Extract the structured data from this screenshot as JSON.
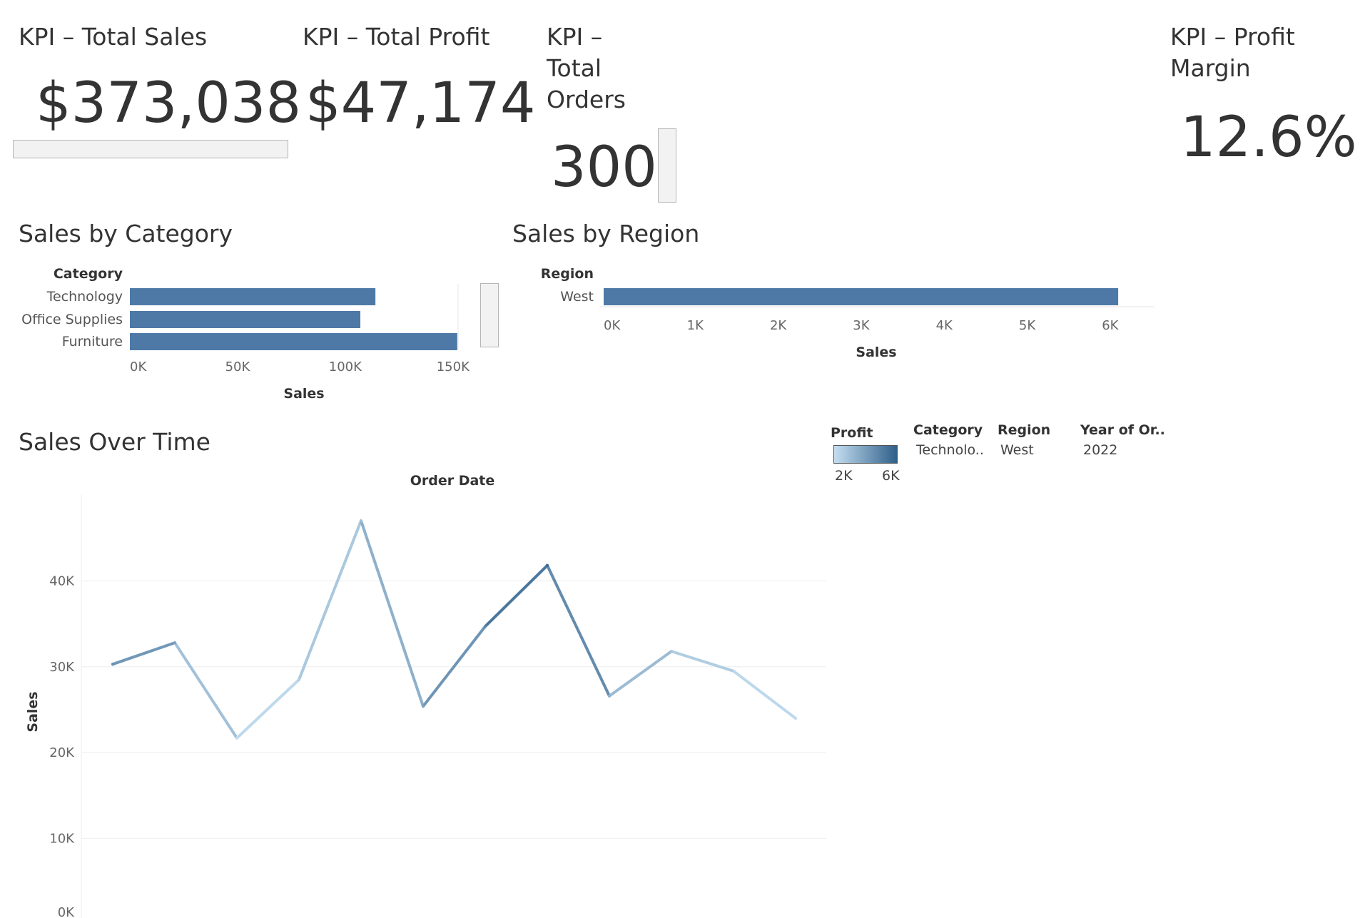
{
  "kpis": {
    "total_sales": {
      "title": "KPI – Total Sales",
      "value": "$373,038"
    },
    "total_profit": {
      "title": "KPI – Total Profit",
      "value": "$47,174"
    },
    "total_orders": {
      "title": "KPI –\nTotal\nOrders",
      "value": "300"
    },
    "profit_margin": {
      "title": "KPI – Profit\nMargin",
      "value": "12.6%"
    }
  },
  "colors": {
    "bar": "#4e79a7",
    "line_low": "#c4def0",
    "line_high": "#2f5f8a",
    "text": "#333333",
    "tick": "#666666"
  },
  "legend": {
    "profit": {
      "title": "Profit",
      "min_label": "2K",
      "max_label": "6K"
    },
    "filters": [
      {
        "label": "Category",
        "value": "Technolo.."
      },
      {
        "label": "Region",
        "value": "West"
      },
      {
        "label": "Year of Or..",
        "value": "2022"
      }
    ]
  },
  "chart_data": [
    {
      "type": "bar",
      "orientation": "horizontal",
      "title": "Sales by Category",
      "row_header": "Category",
      "categories": [
        "Technology",
        "Office Supplies",
        "Furniture"
      ],
      "values": [
        114000,
        107000,
        152000
      ],
      "xlabel": "Sales",
      "xlim": [
        0,
        160000
      ],
      "xticks": [
        0,
        50000,
        100000,
        150000
      ],
      "xtick_labels": [
        "0K",
        "50K",
        "100K",
        "150K"
      ]
    },
    {
      "type": "bar",
      "orientation": "horizontal",
      "title": "Sales by Region",
      "row_header": "Region",
      "categories": [
        "West"
      ],
      "values": [
        6200
      ],
      "xlabel": "Sales",
      "xlim": [
        0,
        6500
      ],
      "xticks": [
        0,
        1000,
        2000,
        3000,
        4000,
        5000,
        6000
      ],
      "xtick_labels": [
        "0K",
        "1K",
        "2K",
        "3K",
        "4K",
        "5K",
        "6K"
      ]
    },
    {
      "type": "line",
      "title": "Sales Over Time",
      "xlabel": "Order Date",
      "ylabel": "Sales",
      "x": [
        1,
        2,
        3,
        4,
        5,
        6,
        7,
        8,
        9,
        10,
        11,
        12
      ],
      "values": [
        30300,
        32800,
        21700,
        28500,
        47000,
        25400,
        34700,
        41800,
        26600,
        31800,
        29500,
        24000
      ],
      "profit": [
        4500,
        3900,
        1900,
        2400,
        3000,
        3900,
        4700,
        5800,
        3400,
        2800,
        2300,
        2100
      ],
      "ylim": [
        0,
        50000
      ],
      "yticks": [
        0,
        10000,
        20000,
        30000,
        40000
      ],
      "ytick_labels": [
        "0K",
        "10K",
        "20K",
        "30K",
        "40K"
      ],
      "color_by": "Profit",
      "color_range": [
        2000,
        6000
      ]
    }
  ]
}
